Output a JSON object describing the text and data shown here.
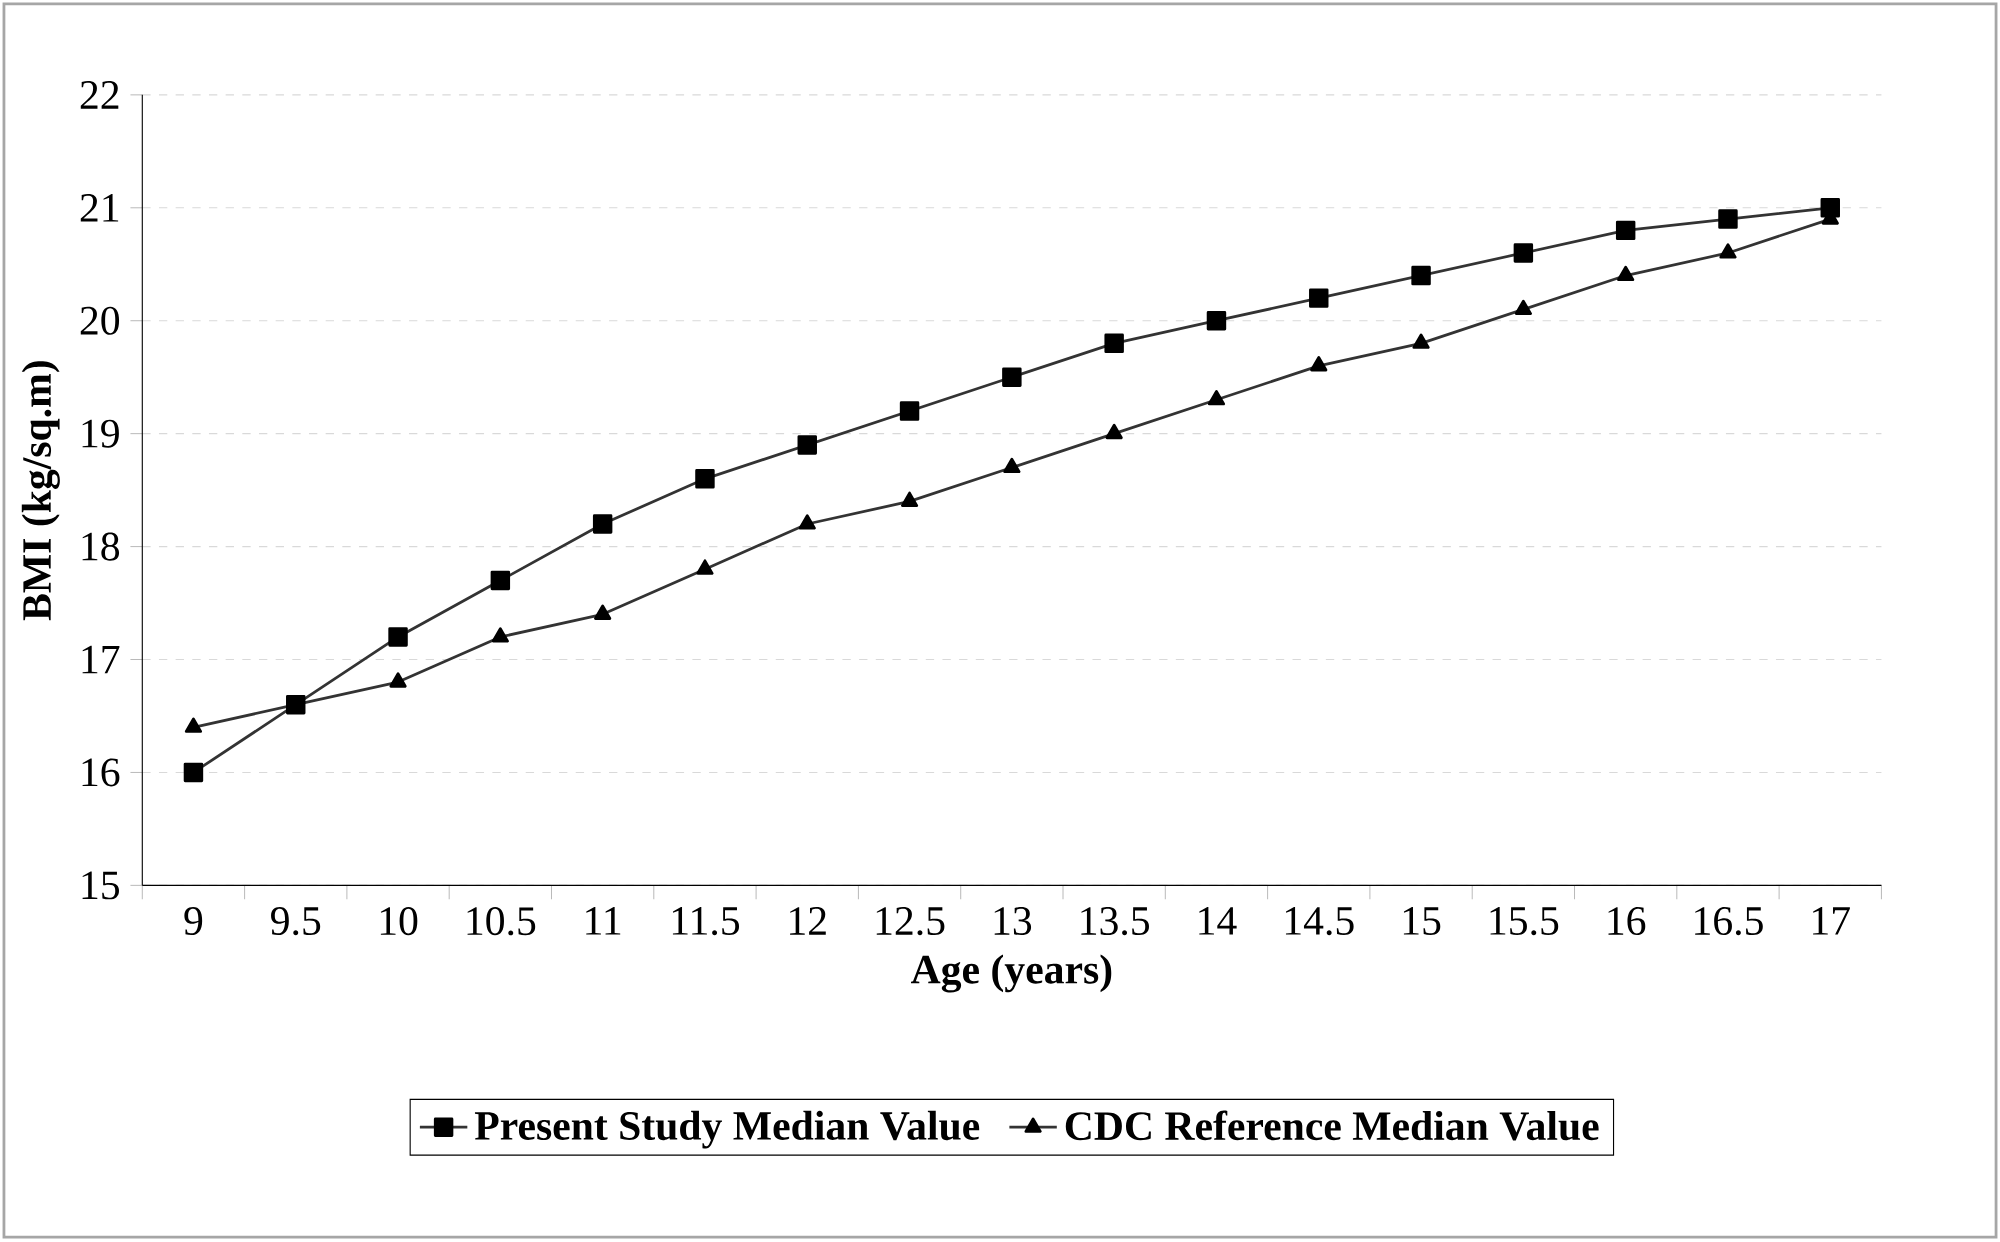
{
  "chart_data": {
    "type": "line",
    "xlabel": "Age (years)",
    "ylabel": "BMI (kg/sq.m)",
    "categories": [
      "9",
      "9.5",
      "10",
      "10.5",
      "11",
      "11.5",
      "12",
      "12.5",
      "13",
      "13.5",
      "14",
      "14.5",
      "15",
      "15.5",
      "16",
      "16.5",
      "17"
    ],
    "series": [
      {
        "name": "Present Study Median Value",
        "color": "#333333",
        "marker": "square",
        "values": [
          16.0,
          16.6,
          17.2,
          17.7,
          18.2,
          18.6,
          18.9,
          19.2,
          19.5,
          19.8,
          20.0,
          20.2,
          20.4,
          20.6,
          20.8,
          20.9,
          21.0
        ]
      },
      {
        "name": "CDC Reference Median Value",
        "color": "#333333",
        "marker": "triangle",
        "values": [
          16.4,
          16.6,
          16.8,
          17.2,
          17.4,
          17.8,
          18.2,
          18.4,
          18.7,
          19.0,
          19.3,
          19.6,
          19.8,
          20.1,
          20.4,
          20.6,
          20.9
        ]
      }
    ],
    "ylim": [
      15,
      22
    ],
    "yticks": [
      15,
      16,
      17,
      18,
      19,
      20,
      21,
      22
    ],
    "grid": "y",
    "legend": "bottom",
    "line_style": "solid"
  }
}
